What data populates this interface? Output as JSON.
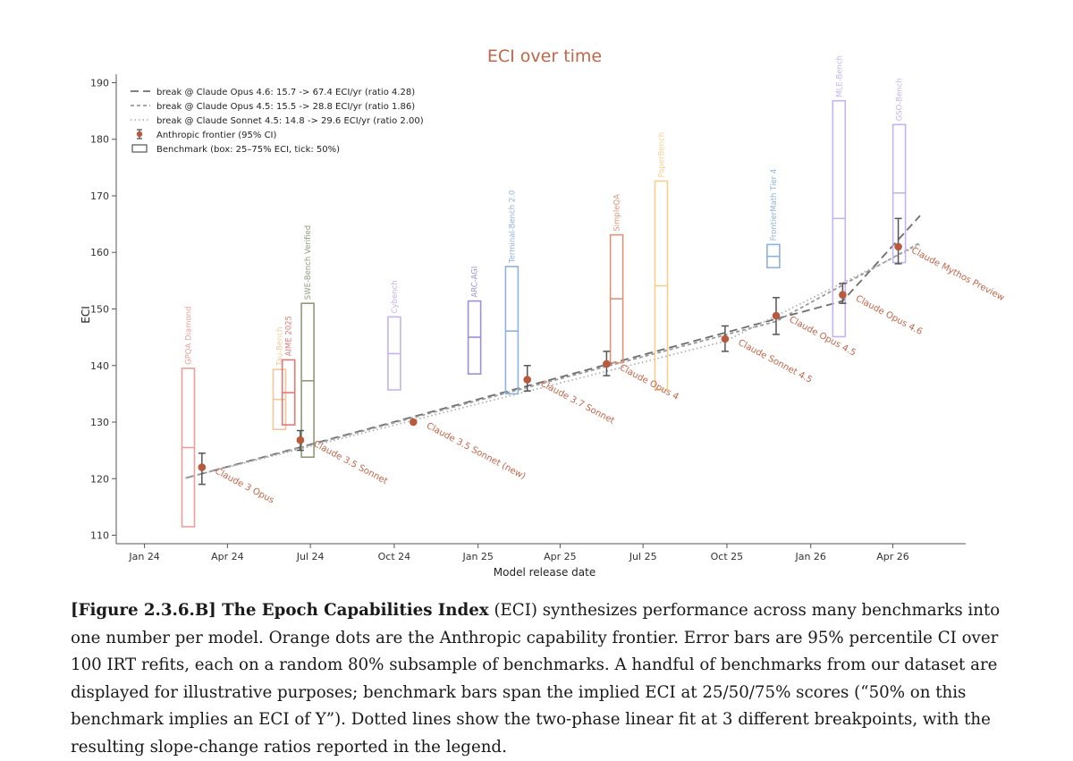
{
  "chart_data": {
    "type": "scatter",
    "title": "ECI over time",
    "xlabel": "Model release date",
    "ylabel": "ECI",
    "x_ticks": [
      {
        "date": "2024-01-01",
        "label": "Jan 24"
      },
      {
        "date": "2024-04-01",
        "label": "Apr 24"
      },
      {
        "date": "2024-07-01",
        "label": "Jul 24"
      },
      {
        "date": "2024-10-01",
        "label": "Oct 24"
      },
      {
        "date": "2025-01-01",
        "label": "Jan 25"
      },
      {
        "date": "2025-04-01",
        "label": "Apr 25"
      },
      {
        "date": "2025-07-01",
        "label": "Jul 25"
      },
      {
        "date": "2025-10-01",
        "label": "Oct 25"
      },
      {
        "date": "2026-01-01",
        "label": "Jan 26"
      },
      {
        "date": "2026-04-01",
        "label": "Apr 26"
      }
    ],
    "y_ticks": [
      110,
      120,
      130,
      140,
      150,
      160,
      170,
      180,
      190
    ],
    "xlim": [
      "2023-12-01",
      "2026-06-20"
    ],
    "ylim": [
      108.5,
      191.5
    ],
    "grid": false,
    "legend_position": "top-left",
    "legend": [
      {
        "label": "break @ Claude Opus 4.6: 15.7 -> 67.4 ECI/yr (ratio 4.28)",
        "style": "dashed"
      },
      {
        "label": "break @ Claude Opus 4.5: 15.5 -> 28.8 ECI/yr (ratio 1.86)",
        "style": "short-dashed"
      },
      {
        "label": "break @ Claude Sonnet 4.5: 14.8 -> 29.6 ECI/yr (ratio 2.00)",
        "style": "dotted"
      },
      {
        "label": "Anthropic frontier (95% CI)",
        "style": "errorbar"
      },
      {
        "label": "Benchmark (box: 25–75% ECI, tick: 50%)",
        "style": "box"
      }
    ],
    "frontier": [
      {
        "name": "Claude 3 Opus",
        "date": "2024-03-04",
        "eci": 122.0,
        "ci": [
          119.0,
          124.5
        ]
      },
      {
        "name": "Claude 3.5 Sonnet",
        "date": "2024-06-20",
        "eci": 126.8,
        "ci": [
          125.0,
          128.5
        ]
      },
      {
        "name": "Claude 3.5 Sonnet (new)",
        "date": "2024-10-22",
        "eci": 130.0
      },
      {
        "name": "Claude 3.7 Sonnet",
        "date": "2025-02-24",
        "eci": 137.5,
        "ci": [
          135.5,
          140.0
        ]
      },
      {
        "name": "Claude Opus 4",
        "date": "2025-05-22",
        "eci": 140.3,
        "ci": [
          138.2,
          142.5
        ]
      },
      {
        "name": "Claude Sonnet 4.5",
        "date": "2025-09-29",
        "eci": 144.7,
        "ci": [
          142.5,
          147.0
        ]
      },
      {
        "name": "Claude Opus 4.5",
        "date": "2025-11-24",
        "eci": 148.8,
        "ci": [
          145.5,
          152.0
        ]
      },
      {
        "name": "Claude Opus 4.6",
        "date": "2026-02-05",
        "eci": 152.5,
        "ci": [
          151.0,
          154.5
        ]
      },
      {
        "name": "Claude Mythos Preview",
        "date": "2026-04-07",
        "eci": 161.0,
        "ci": [
          158.0,
          166.0
        ]
      }
    ],
    "benchmarks": [
      {
        "name": "GPQA Diamond",
        "date": "2024-02-18",
        "q25": 111.5,
        "q50": 125.5,
        "q75": 139.5,
        "color": "#e8a19a"
      },
      {
        "name": "Tau-Bench",
        "date": "2024-05-28",
        "q25": 128.7,
        "q50": 134.0,
        "q75": 139.3,
        "color": "#f2c89a"
      },
      {
        "name": "AIME 2025",
        "date": "2024-06-07",
        "q25": 129.5,
        "q50": 135.2,
        "q75": 141.0,
        "color": "#e07876"
      },
      {
        "name": "SWE-Bench Verified",
        "date": "2024-06-28",
        "q25": 123.8,
        "q50": 137.3,
        "q75": 151.0,
        "color": "#8f9a78"
      },
      {
        "name": "Cybench",
        "date": "2024-10-01",
        "q25": 135.7,
        "q50": 142.1,
        "q75": 148.6,
        "color": "#c5b4ea"
      },
      {
        "name": "ARC-AGI",
        "date": "2024-12-28",
        "q25": 138.5,
        "q50": 145.0,
        "q75": 151.4,
        "color": "#9d8fd8"
      },
      {
        "name": "Terminal-Bench 2.0",
        "date": "2025-02-07",
        "q25": 135.0,
        "q50": 146.1,
        "q75": 157.5,
        "color": "#8fb1da"
      },
      {
        "name": "SimpleQA",
        "date": "2025-06-02",
        "q25": 140.5,
        "q50": 151.8,
        "q75": 163.1,
        "color": "#d9947c"
      },
      {
        "name": "PaperBench",
        "date": "2025-07-21",
        "q25": 135.7,
        "q50": 154.1,
        "q75": 172.6,
        "color": "#f4d08f"
      },
      {
        "name": "FrontierMath Tier 4",
        "date": "2025-11-21",
        "q25": 157.3,
        "q50": 159.3,
        "q75": 161.4,
        "color": "#8fb1da"
      },
      {
        "name": "MLE-Bench",
        "date": "2026-02-01",
        "q25": 145.1,
        "q50": 166.0,
        "q75": 186.8,
        "color": "#c5b4ea"
      },
      {
        "name": "GSO-Bench",
        "date": "2026-04-08",
        "q25": 158.2,
        "q50": 170.5,
        "q75": 182.6,
        "color": "#c5b4ea"
      }
    ],
    "fits": [
      {
        "style": "dashed",
        "points": [
          {
            "date": "2024-02-15",
            "eci": 120.1
          },
          {
            "date": "2026-02-05",
            "eci": 151.4
          },
          {
            "date": "2026-05-01",
            "eci": 166.5
          }
        ]
      },
      {
        "style": "short-dashed",
        "points": [
          {
            "date": "2024-02-15",
            "eci": 120.1
          },
          {
            "date": "2025-11-24",
            "eci": 147.8
          },
          {
            "date": "2026-05-01",
            "eci": 161.7
          }
        ]
      },
      {
        "style": "dotted",
        "points": [
          {
            "date": "2024-02-15",
            "eci": 120.1
          },
          {
            "date": "2025-09-29",
            "eci": 144.3
          },
          {
            "date": "2026-05-01",
            "eci": 161.4
          }
        ]
      }
    ]
  },
  "caption": {
    "label": "[Figure 2.3.6.B] The Epoch Capabilities Index",
    "text": " (ECI) synthesizes performance across many benchmarks into one number per model. Orange dots are the Anthropic capability frontier. Error bars are 95% percentile CI over 100 IRT refits, each on a random 80% subsample of benchmarks. A handful of benchmarks from our dataset are displayed for illustrative purposes; benchmark bars span the implied ECI at 25/50/75% scores (“50% on this benchmark implies an ECI of Y”). Dotted lines show the two-phase linear fit at 3 different breakpoints, with the resulting slope-change ratios reported in the legend."
  },
  "colors": {
    "frontier_dot": "#b85a3e",
    "label_text": "#c0664a",
    "fit_line": "#777777",
    "errorbar": "#555555",
    "axis": "#555555"
  }
}
